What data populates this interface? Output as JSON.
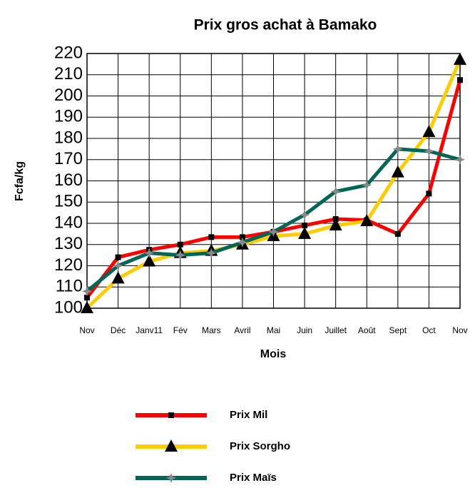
{
  "chart_data": {
    "type": "line",
    "title": "Prix  gros achat à Bamako",
    "x_label": "Mois",
    "y_label": "Fcfa/kg",
    "categories": [
      "Nov",
      "Déc",
      "Janv11",
      "Fév",
      "Mars",
      "Avril",
      "Mai",
      "Juin",
      "Juillet",
      "Août",
      "Sept",
      "Oct",
      "Nov"
    ],
    "series": [
      {
        "name": "Prix Mil",
        "color": "#ff0000",
        "marker": "square",
        "values": [
          105,
          124,
          127.5,
          130,
          133.5,
          133.5,
          136,
          139,
          142,
          141.5,
          135,
          154,
          207.5
        ]
      },
      {
        "name": "Prix Sorgho",
        "color": "#ffcc00",
        "marker": "triangle",
        "values": [
          100,
          114,
          122,
          126,
          127,
          130,
          134,
          135,
          139,
          141,
          164,
          183,
          217
        ]
      },
      {
        "name": "Prix Maïs",
        "color": "#006655",
        "marker": "star",
        "values": [
          108,
          120,
          126,
          125,
          126,
          131,
          136,
          144,
          155,
          158,
          175,
          174,
          170
        ]
      }
    ],
    "ylim": [
      100,
      220
    ],
    "yticks": [
      100,
      110,
      120,
      130,
      140,
      150,
      160,
      170,
      180,
      190,
      200,
      210,
      220
    ],
    "grid": true
  }
}
